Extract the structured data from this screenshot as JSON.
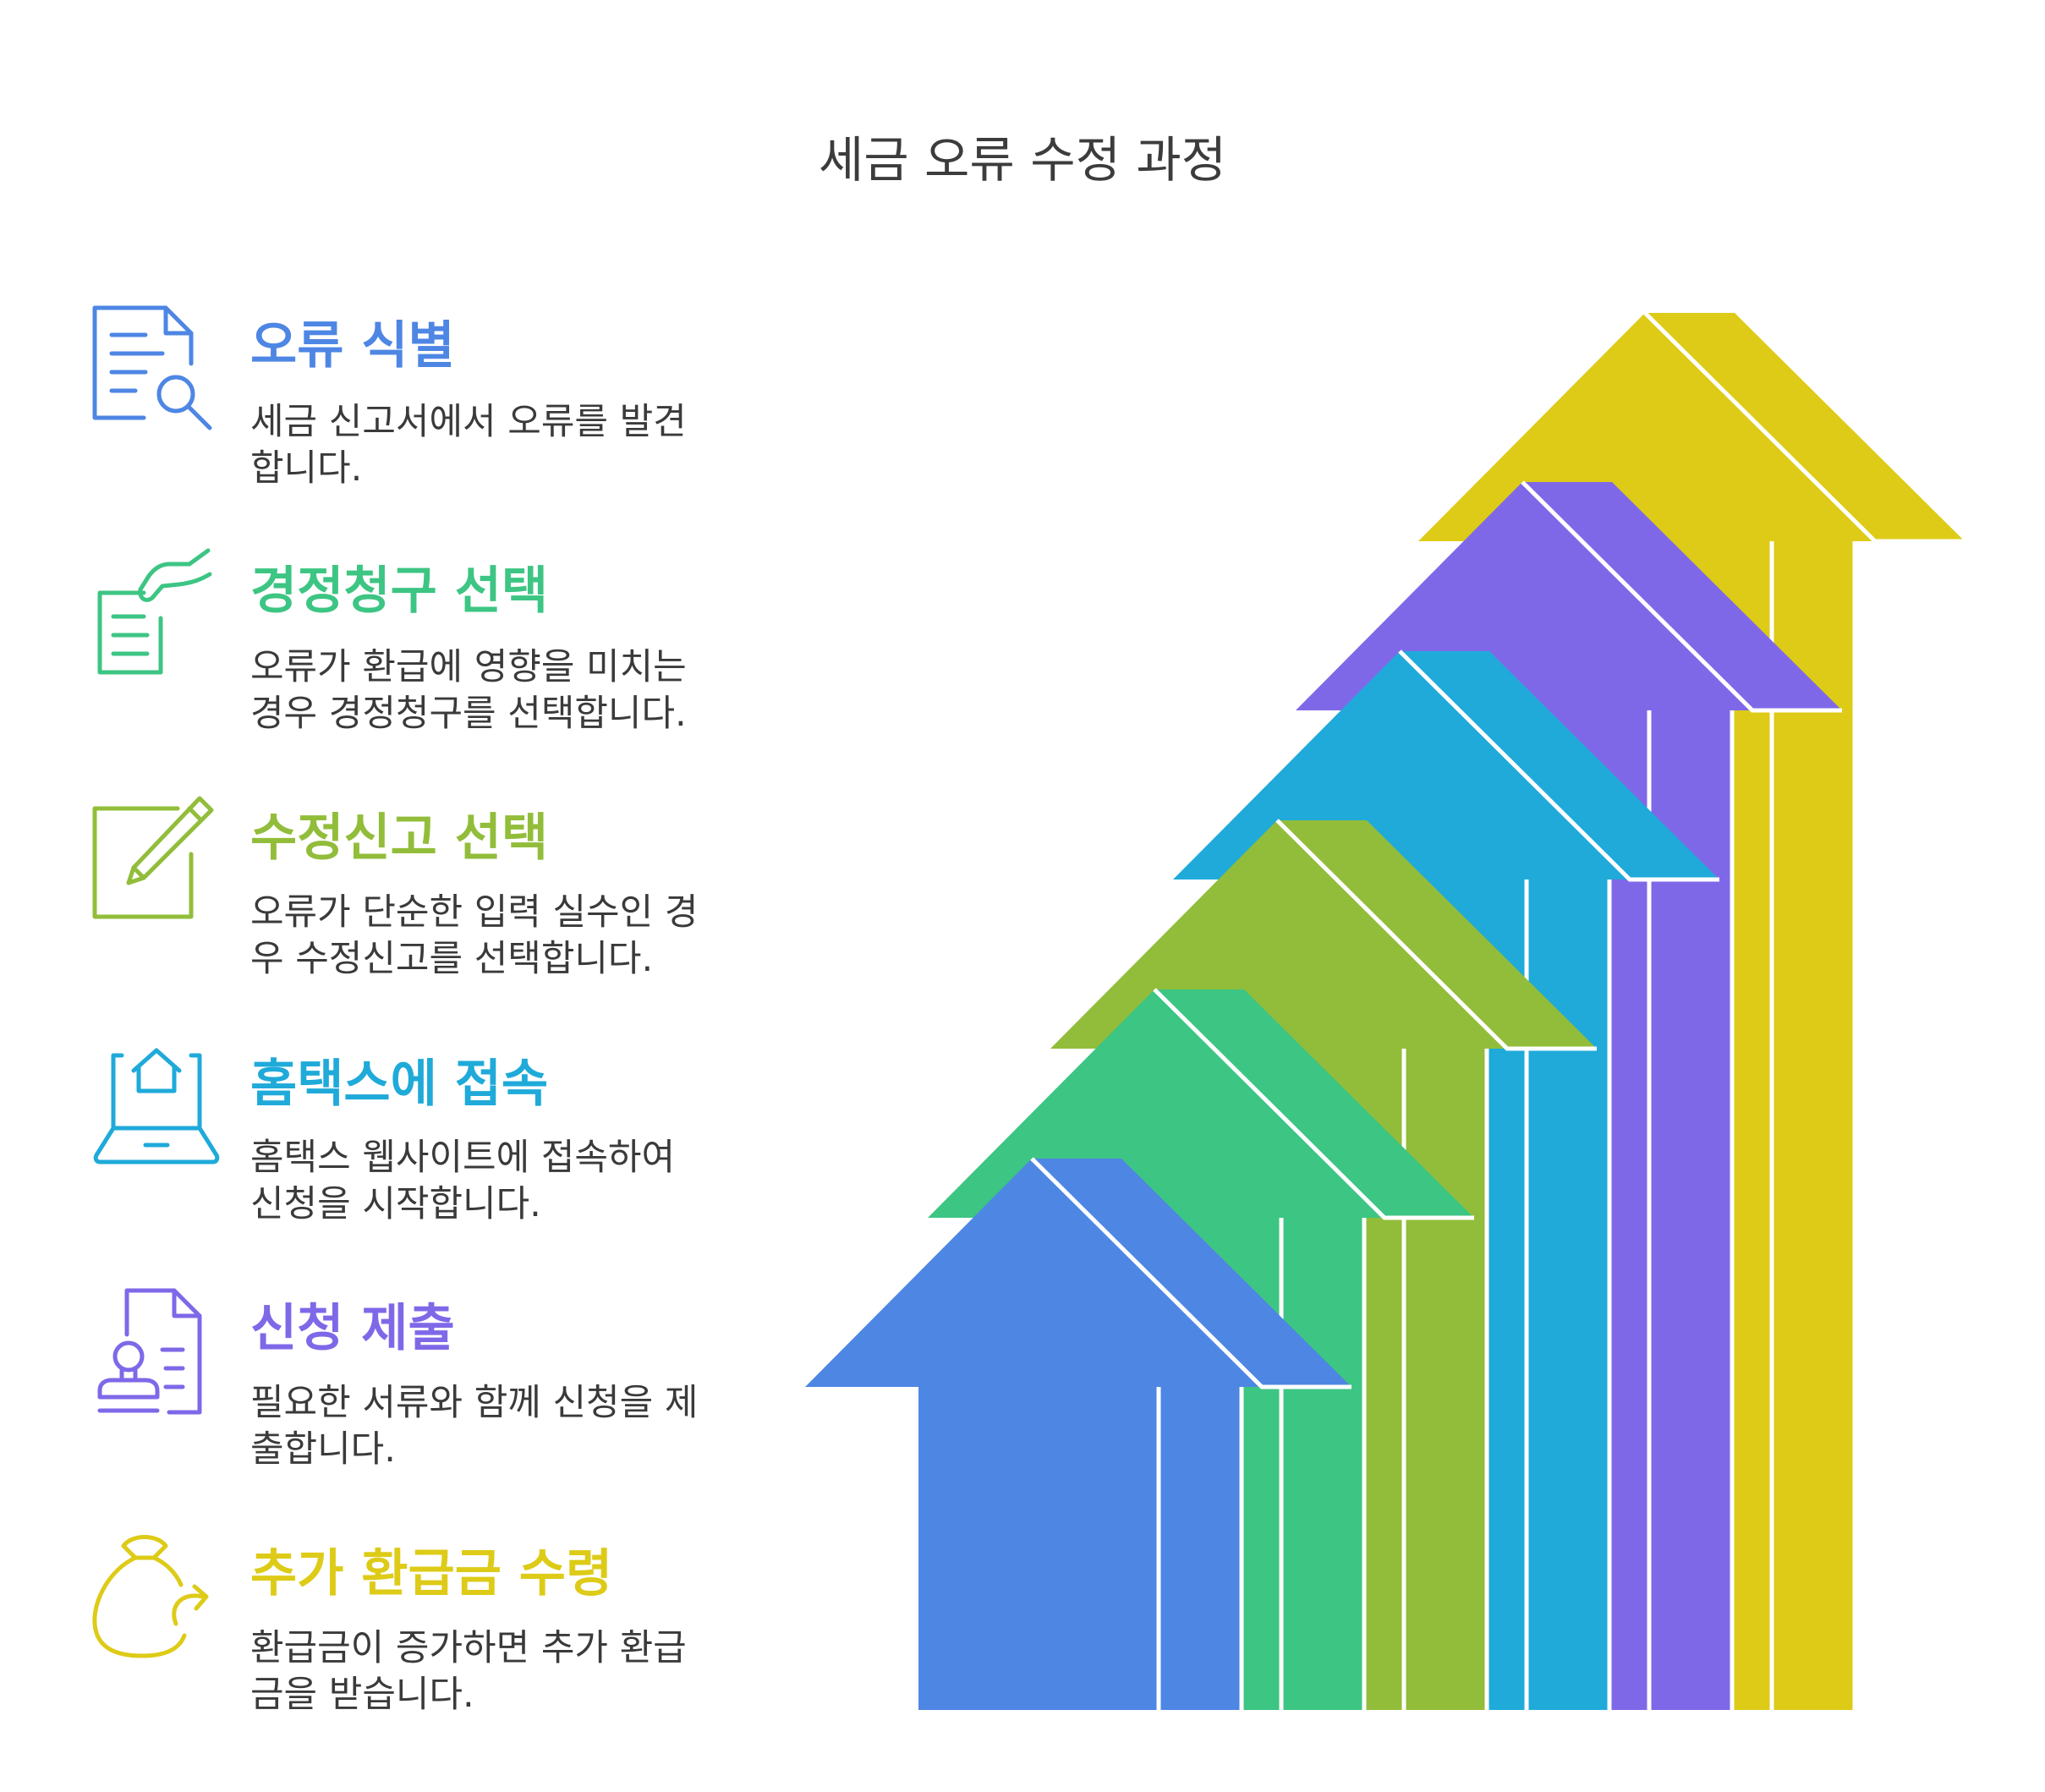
{
  "title": "세금 오류 수정 과정",
  "steps": [
    {
      "title": "오류 식별",
      "desc": [
        "세금 신고서에서 오류를 발견",
        "합니다."
      ],
      "color": "#4E86E4",
      "icon": "document-search-icon"
    },
    {
      "title": "경정청구 선택",
      "desc": [
        "오류가 환급에 영향을 미치는",
        "경우 경정청구를 선택합니다."
      ],
      "color": "#3DC583",
      "icon": "hand-document-icon"
    },
    {
      "title": "수정신고 선택",
      "desc": [
        "오류가 단순한 입력 실수인 경",
        "우 수정신고를 선택합니다."
      ],
      "color": "#92BD3A",
      "icon": "edit-pencil-icon"
    },
    {
      "title": "홈택스에 접속",
      "desc": [
        "홈택스 웹사이트에 접속하여",
        "신청을 시작합니다."
      ],
      "color": "#1FAAD9",
      "icon": "laptop-home-icon"
    },
    {
      "title": "신청 제출",
      "desc": [
        "필요한 서류와 함께 신청을 제",
        "출합니다."
      ],
      "color": "#7F68E8",
      "icon": "stamp-document-icon"
    },
    {
      "title": "추가 환급금 수령",
      "desc": [
        "환급금이 증가하면 추가 환급",
        "금을 받습니다."
      ],
      "color": "#DDCB17",
      "icon": "money-bag-icon"
    }
  ]
}
